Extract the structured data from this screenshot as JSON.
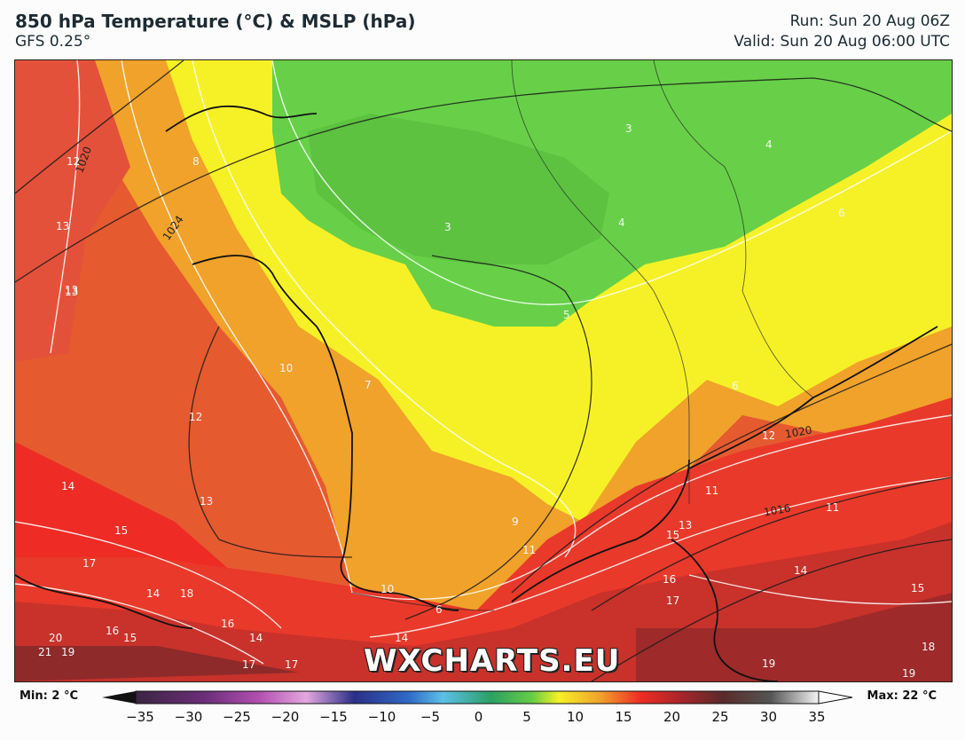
{
  "header": {
    "title": "850 hPa Temperature (°C) & MSLP (hPa)",
    "model": "GFS 0.25°",
    "run": "Run: Sun 20 Aug 06Z",
    "valid": "Valid: Sun 20 Aug 06:00 UTC"
  },
  "watermark": "WXCHARTS.EU",
  "legend": {
    "min": "Min: 2 °C",
    "max": "Max: 22 °C",
    "ticks": [
      "−35",
      "−30",
      "−25",
      "−20",
      "−15",
      "−10",
      "−5",
      "0",
      "5",
      "10",
      "15",
      "20",
      "25",
      "30",
      "35"
    ]
  },
  "temperature_labels": [
    "12",
    "13",
    "13",
    "8",
    "10",
    "12",
    "14",
    "13",
    "15",
    "17",
    "14",
    "18",
    "16",
    "15",
    "20",
    "21",
    "19",
    "16",
    "14",
    "17",
    "17",
    "10",
    "7",
    "9",
    "11",
    "6",
    "3",
    "4",
    "5",
    "3",
    "4",
    "6",
    "6",
    "12",
    "11",
    "11",
    "15",
    "13",
    "16",
    "17",
    "14",
    "15",
    "19",
    "18",
    "19",
    "14",
    "13"
  ],
  "isobar_labels": [
    "1020",
    "1024",
    "1020",
    "1016"
  ],
  "colors": {
    "green": "#66cc44",
    "yellow": "#f6f127",
    "orange": "#f0a22a",
    "red_orange": "#e65a30",
    "red": "#ee2b24",
    "dark_red": "#a6252a"
  }
}
